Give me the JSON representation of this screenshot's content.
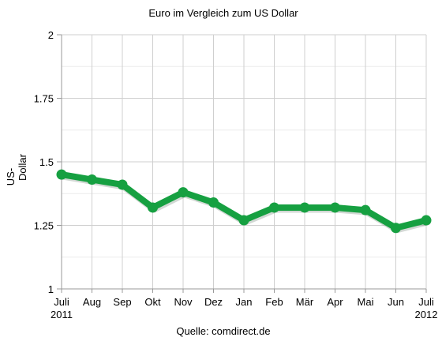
{
  "chart_data": {
    "type": "line",
    "title": "Euro im Vergleich zum US Dollar",
    "ylabel": "US-Dollar",
    "ylabel_lines": [
      "US-",
      "Dollar"
    ],
    "source": "Quelle: comdirect.de",
    "categories": [
      "Juli",
      "Aug",
      "Sep",
      "Okt",
      "Nov",
      "Dez",
      "Jan",
      "Feb",
      "Mär",
      "Apr",
      "Mai",
      "Jun",
      "Juli"
    ],
    "category_sublabels": [
      "2011",
      "",
      "",
      "",
      "",
      "",
      "",
      "",
      "",
      "",
      "",
      "",
      "2012"
    ],
    "series": [
      {
        "values": [
          1.45,
          1.43,
          1.41,
          1.32,
          1.38,
          1.34,
          1.27,
          1.32,
          1.32,
          1.32,
          1.31,
          1.24,
          1.27
        ]
      }
    ],
    "yticks": [
      "1",
      "1.25",
      "1.5",
      "1.75",
      "2"
    ],
    "ylim": [
      1,
      2
    ],
    "grid": true,
    "colors": {
      "line": "#16a041",
      "grid": "#cfcfcf",
      "minor_grid": "#ececec",
      "axis": "#999999"
    }
  }
}
